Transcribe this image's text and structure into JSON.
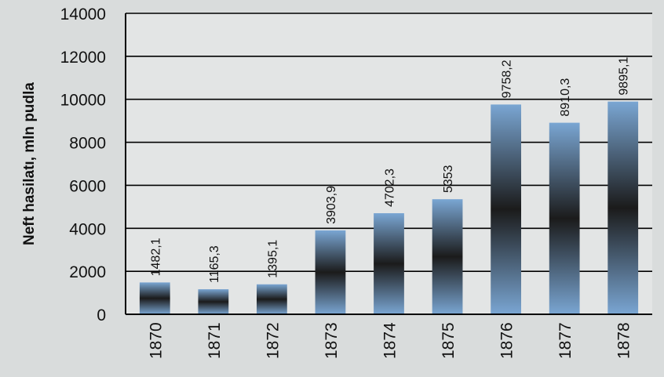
{
  "chart_data": {
    "type": "bar",
    "title": "",
    "xlabel": "",
    "ylabel": "Neft hasilatı, mln pudla",
    "categories": [
      "1870",
      "1871",
      "1872",
      "1873",
      "1874",
      "1875",
      "1876",
      "1877",
      "1878"
    ],
    "values": [
      1482.1,
      1165.3,
      1395.1,
      3903.9,
      4702.3,
      5353,
      9758.2,
      8910.3,
      9895.1
    ],
    "value_labels": [
      "1482,1",
      "1165,3",
      "1395,1",
      "3903,9",
      "4702,3",
      "5353",
      "9758,2",
      "8910,3",
      "9895,1"
    ],
    "y_ticks": [
      "0",
      "2000",
      "4000",
      "6000",
      "8000",
      "10000",
      "12000",
      "14000"
    ],
    "ylim": [
      0,
      14000
    ],
    "grid": true,
    "legend": "none",
    "colors": {
      "bar_light": "#7aa6d3",
      "bar_dark": "#1b1b1b",
      "grid": "#000000",
      "background": "#d9dcdc"
    }
  }
}
